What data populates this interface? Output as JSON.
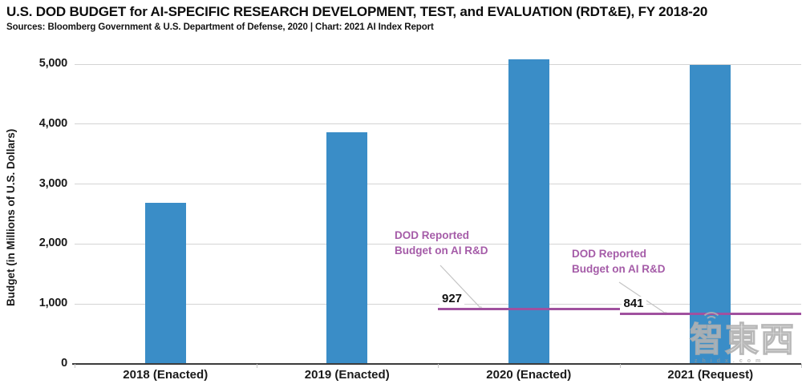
{
  "header": {
    "title": "U.S. DOD BUDGET for AI-SPECIFIC RESEARCH DEVELOPMENT, TEST, and EVALUATION (RDT&E), FY 2018-20",
    "subtitle": "Sources: Bloomberg Government & U.S. Department of Defense, 2020 | Chart: 2021 AI Index Report"
  },
  "chart_data": {
    "type": "bar",
    "title": "U.S. DOD BUDGET for AI-SPECIFIC RESEARCH DEVELOPMENT, TEST, and EVALUATION (RDT&E), FY 2018-20",
    "categories": [
      "2018 (Enacted)",
      "2019 (Enacted)",
      "2020 (Enacted)",
      "2021 (Request)"
    ],
    "values": [
      2690,
      3860,
      5080,
      4990
    ],
    "xlabel": "",
    "ylabel": "Budget (in Millions of U.S. Dollars)",
    "yticks": [
      0,
      1000,
      2000,
      3000,
      4000,
      5000
    ],
    "ytick_labels": [
      "0",
      "1,000",
      "2,000",
      "3,000",
      "4,000",
      "5,000"
    ],
    "ylim": [
      0,
      5350
    ],
    "grid": true,
    "legend": "none",
    "bar_color": "#3a8dc7",
    "line_color": "#a0519f",
    "annotation_color": "#a55ca8",
    "reported_lines": [
      {
        "label": "927",
        "value": 927,
        "category_index": 2,
        "annotation_lines": [
          "DOD Reported",
          "Budget on AI R&D"
        ]
      },
      {
        "label": "841",
        "value": 841,
        "category_index": 3,
        "annotation_lines": [
          "DOD Reported",
          "Budget on AI R&D"
        ]
      }
    ]
  },
  "watermark": {
    "text": "智東西",
    "subtext": "zhidx.com"
  }
}
